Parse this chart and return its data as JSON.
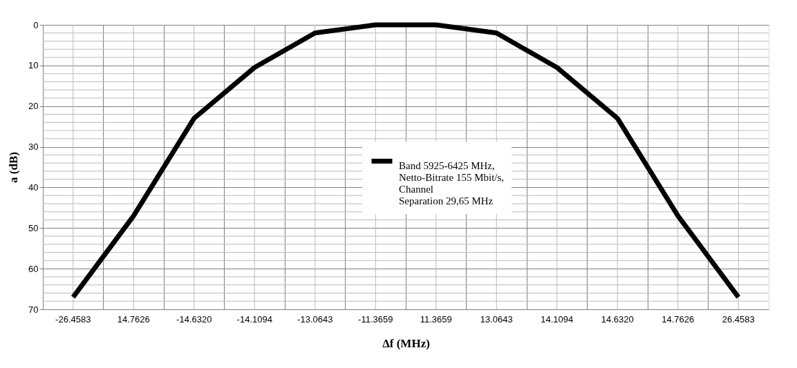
{
  "chart_data": {
    "type": "line",
    "categories": [
      "-26.4583",
      "14.7626",
      "-14.6320",
      "-14.1094",
      "-13.0643",
      "-11.3659",
      "11.3659",
      "13.0643",
      "14.1094",
      "14.6320",
      "14.7626",
      "26.4583"
    ],
    "series": [
      {
        "name": "Band 5925-6425 MHz,\nNetto-Bitrate 155 Mbit/s,\nChannel\nSeparation 29,65 MHz",
        "color": "#000000",
        "values": [
          67,
          47,
          23,
          10.5,
          2,
          0,
          0,
          2,
          10.5,
          23,
          47,
          67
        ]
      }
    ],
    "xlabel": "Δf (MHz)",
    "ylabel": "a (dB)",
    "ylim": [
      70,
      0
    ],
    "yticks": [
      0,
      10,
      20,
      30,
      40,
      50,
      60,
      70
    ],
    "grid": true,
    "legend": "center",
    "marker": "none",
    "line_style": "solid"
  }
}
